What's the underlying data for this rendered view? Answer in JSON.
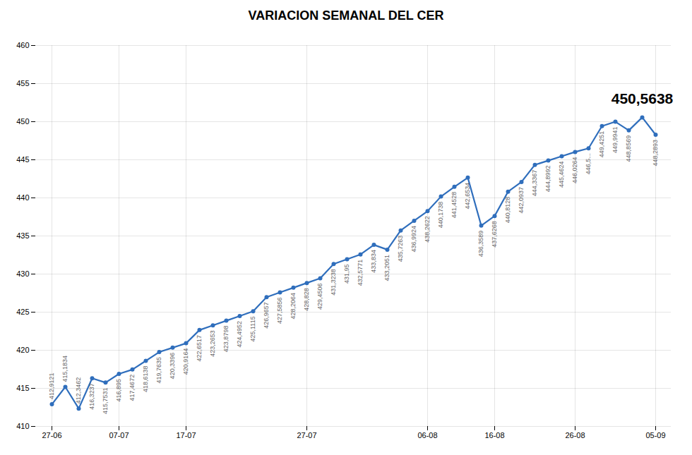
{
  "chart_data": {
    "type": "line",
    "title": "VARIACION SEMANAL DEL CER",
    "categories": [
      "27-06",
      null,
      null,
      null,
      null,
      "07-07",
      null,
      null,
      null,
      null,
      "17-07",
      null,
      null,
      null,
      null,
      null,
      null,
      null,
      null,
      "27-07",
      null,
      null,
      null,
      null,
      null,
      null,
      null,
      null,
      "06-08",
      null,
      null,
      null,
      null,
      "16-08",
      null,
      null,
      null,
      null,
      null,
      "26-08",
      null,
      null,
      null,
      null,
      null,
      "05-09"
    ],
    "values": [
      412.9121,
      415.1834,
      412.3462,
      416.3237,
      415.7531,
      416.895,
      417.4672,
      418.6138,
      419.7635,
      420.3396,
      420.9164,
      422.6517,
      423.2653,
      423.8798,
      424.4952,
      425.1115,
      426.9657,
      427.5856,
      428.2064,
      428.828,
      429.4506,
      431.3238,
      431.95,
      432.5771,
      433.834,
      433.2051,
      435.7263,
      436.9924,
      438.2622,
      440.1738,
      441.4528,
      442.6534,
      436.3589,
      437.6268,
      440.8128,
      442.0937,
      444.3367,
      444.8992,
      445.4624,
      446.0264,
      446.5,
      449.4251,
      449.9941,
      448.8569,
      450.5638,
      448.2893
    ],
    "value_labels": [
      "412,9121",
      "415,1834",
      "412,3462",
      "416,3237",
      "415,7531",
      "416,895",
      "417,4672",
      "418,6138",
      "419,7635",
      "420,3396",
      "420,9164",
      "422,6517",
      "423,2653",
      "423,8798",
      "424,4952",
      "425,1115",
      "426,9657",
      "427,5856",
      "428,2064",
      "428,828",
      "429,4506",
      "431,3238",
      "431,95",
      "432,5771",
      "433,834",
      "433,2051",
      "435,7263",
      "436,9924",
      "438,2622",
      "440,1738",
      "441,4528",
      "442,6534",
      "436,3589",
      "437,6268",
      "440,8128",
      "442,0937",
      "444,3367",
      "444,8992",
      "445,4624",
      "446,0264",
      "446,5...",
      "449,4251",
      "449,9941",
      "448,8569",
      "450,5638",
      "448,2893"
    ],
    "data_labels": true,
    "color": "#2F6EBC",
    "marker": "circle",
    "ylim": [
      410,
      460
    ],
    "yticks": [
      410,
      415,
      420,
      425,
      430,
      435,
      440,
      445,
      450,
      455,
      460
    ],
    "grid": true
  }
}
